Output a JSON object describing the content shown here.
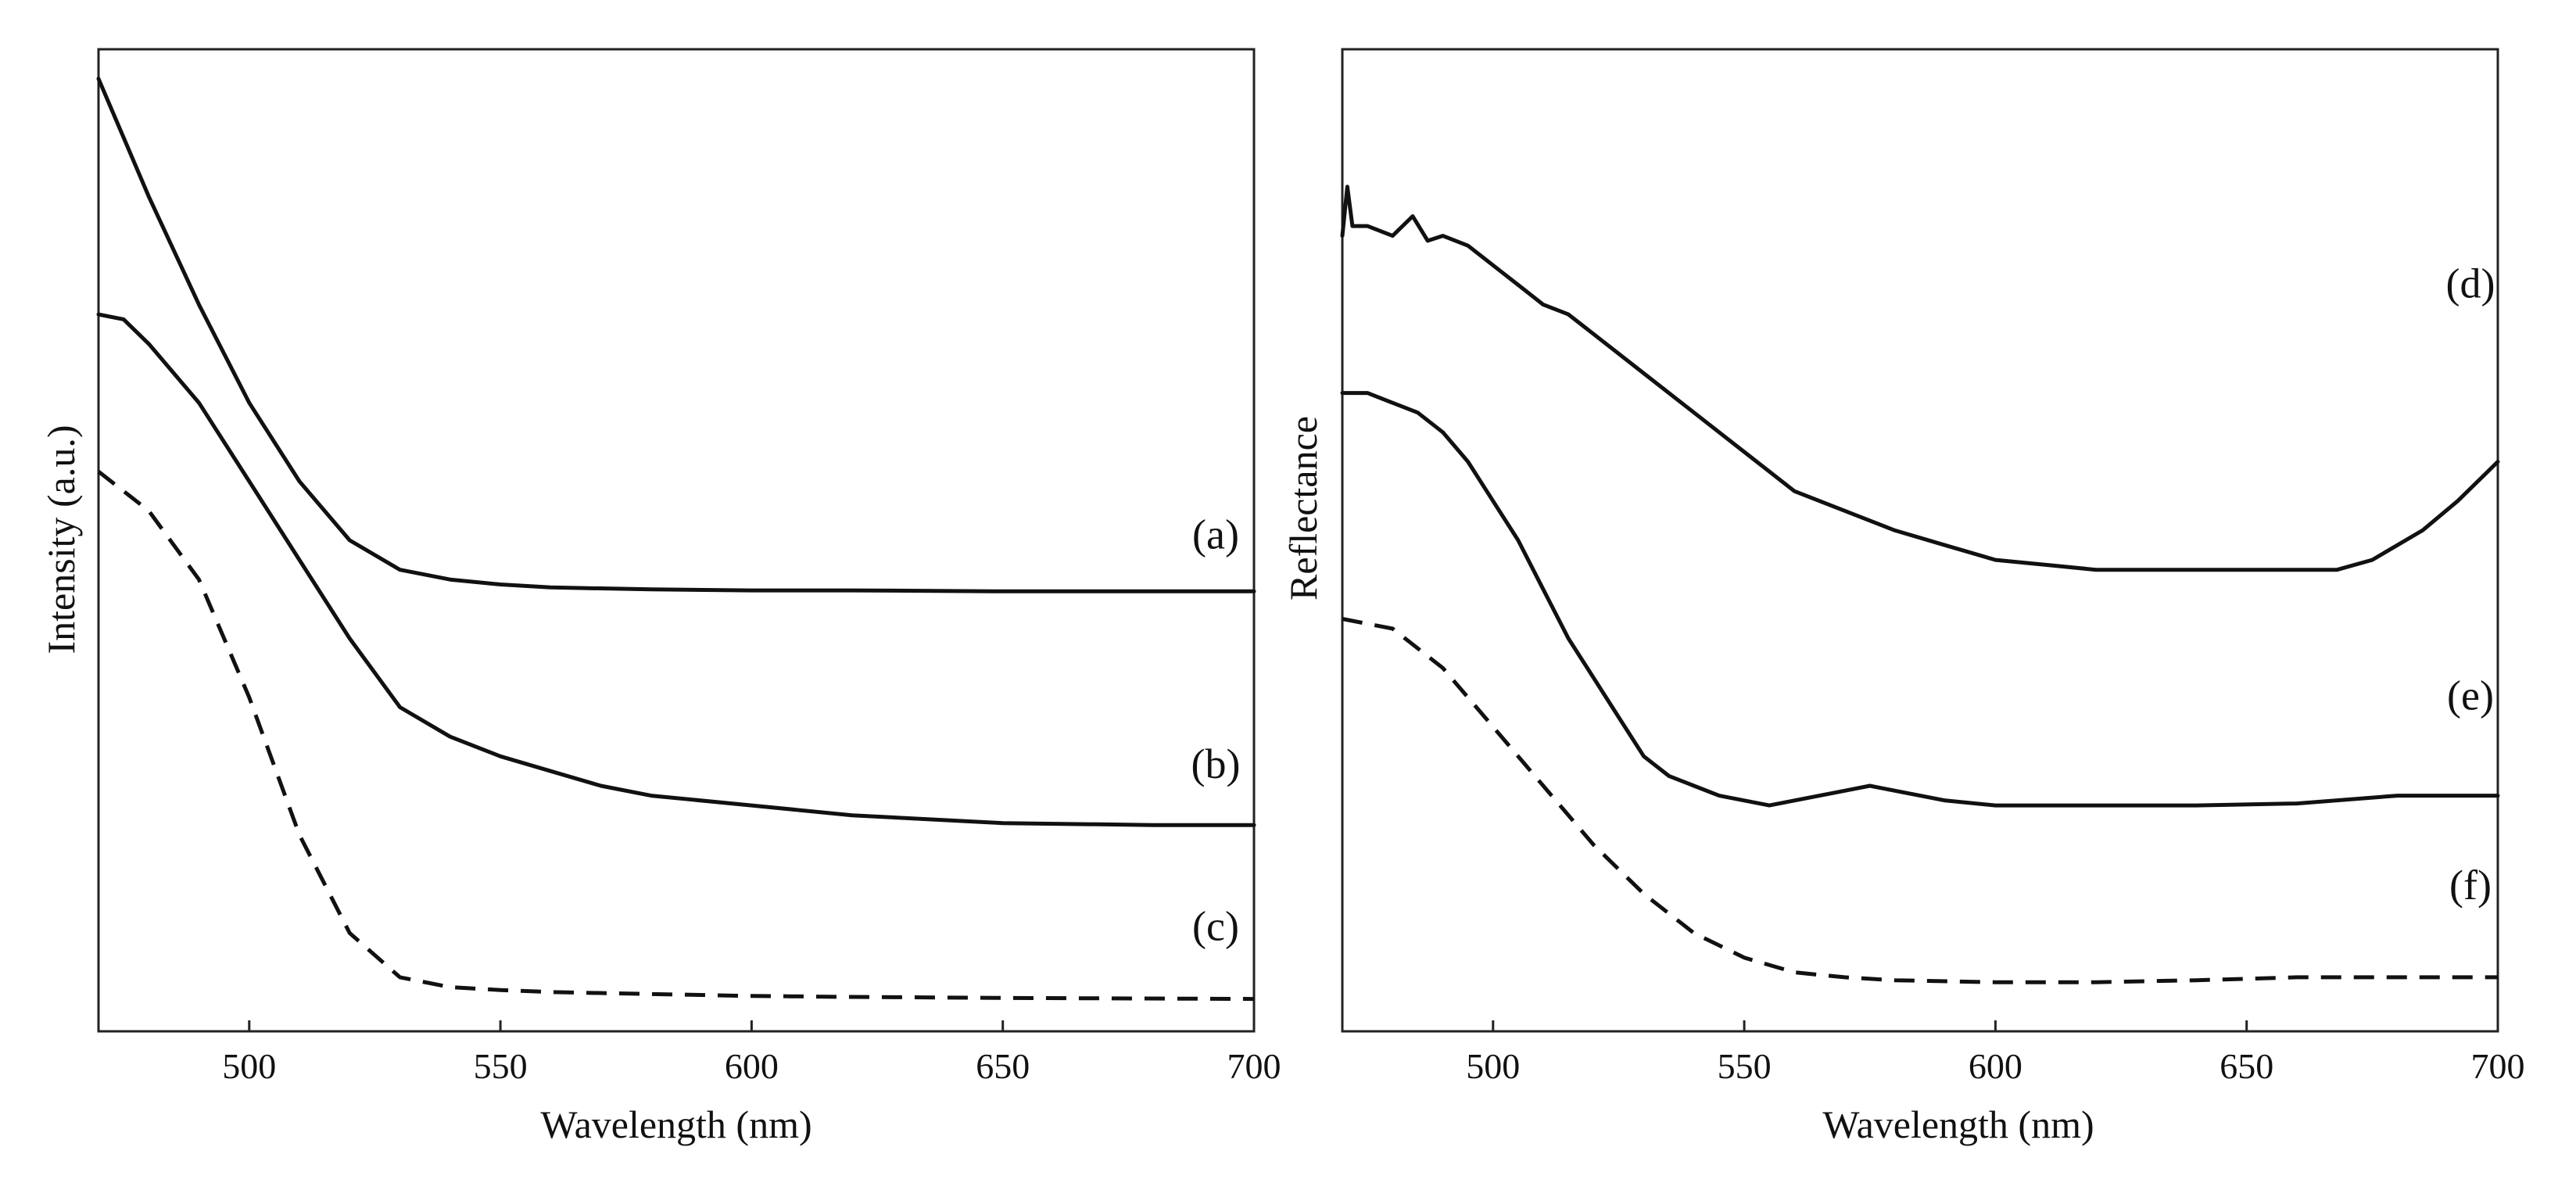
{
  "chart_data": [
    {
      "type": "line",
      "panel": "left",
      "xlabel": "Wavelength (nm)",
      "ylabel": "Intensity (a.u.)",
      "xlim": [
        470,
        700
      ],
      "ylim": [
        0,
        100
      ],
      "xticks": [
        500,
        550,
        600,
        650,
        700
      ],
      "series": [
        {
          "name": "(a)",
          "style": "solid",
          "x": [
            470,
            480,
            490,
            500,
            510,
            520,
            530,
            540,
            550,
            560,
            580,
            600,
            620,
            650,
            700
          ],
          "y": [
            97,
            85,
            74,
            64,
            56,
            50,
            47,
            46,
            45.5,
            45.2,
            45,
            44.9,
            44.9,
            44.8,
            44.8
          ]
        },
        {
          "name": "(b)",
          "style": "solid",
          "x": [
            470,
            475,
            480,
            490,
            500,
            510,
            520,
            530,
            540,
            550,
            560,
            570,
            580,
            600,
            620,
            650,
            680,
            700
          ],
          "y": [
            73,
            72.5,
            70,
            64,
            56,
            48,
            40,
            33,
            30,
            28,
            26.5,
            25,
            24,
            23,
            22,
            21.2,
            21,
            21
          ]
        },
        {
          "name": "(c)",
          "style": "dashed",
          "x": [
            470,
            480,
            490,
            500,
            510,
            520,
            530,
            540,
            550,
            560,
            580,
            600,
            620,
            650,
            700
          ],
          "y": [
            57,
            53,
            46,
            34,
            20,
            10,
            5.5,
            4.5,
            4.2,
            4,
            3.8,
            3.6,
            3.5,
            3.4,
            3.3
          ]
        }
      ]
    },
    {
      "type": "line",
      "panel": "right",
      "xlabel": "Wavelength (nm)",
      "ylabel": "Reflectance",
      "xlim": [
        470,
        700
      ],
      "ylim": [
        0,
        100
      ],
      "xticks": [
        500,
        550,
        600,
        650,
        700
      ],
      "series": [
        {
          "name": "(d)",
          "style": "solid",
          "x": [
            470,
            471,
            472,
            475,
            480,
            484,
            487,
            490,
            495,
            500,
            505,
            510,
            515,
            520,
            530,
            540,
            550,
            560,
            570,
            580,
            590,
            600,
            610,
            620,
            630,
            640,
            650,
            660,
            668,
            675,
            685,
            692,
            700
          ],
          "y": [
            81,
            86,
            82,
            82,
            81,
            83,
            80.5,
            81,
            80,
            78,
            76,
            74,
            73,
            71,
            67,
            63,
            59,
            55,
            53,
            51,
            49.5,
            48,
            47.5,
            47,
            47,
            47,
            47,
            47,
            47,
            48,
            51,
            54,
            58
          ]
        },
        {
          "name": "(e)",
          "style": "solid",
          "x": [
            470,
            475,
            480,
            485,
            490,
            495,
            500,
            505,
            510,
            515,
            520,
            525,
            530,
            535,
            540,
            545,
            550,
            555,
            560,
            570,
            575,
            580,
            590,
            600,
            620,
            640,
            660,
            680,
            700
          ],
          "y": [
            65,
            65,
            64,
            63,
            61,
            58,
            54,
            50,
            45,
            40,
            36,
            32,
            28,
            26,
            25,
            24,
            23.5,
            23,
            23.5,
            24.5,
            25,
            24.5,
            23.5,
            23,
            23,
            23,
            23.2,
            24,
            24
          ]
        },
        {
          "name": "(f)",
          "style": "dashed",
          "x": [
            470,
            475,
            480,
            490,
            500,
            510,
            520,
            530,
            540,
            550,
            560,
            570,
            580,
            600,
            620,
            640,
            660,
            680,
            700
          ],
          "y": [
            42,
            41.5,
            41,
            37,
            31,
            25,
            19,
            14,
            10,
            7.5,
            6,
            5.5,
            5.2,
            5,
            5,
            5.2,
            5.5,
            5.5,
            5.5
          ]
        }
      ]
    }
  ]
}
